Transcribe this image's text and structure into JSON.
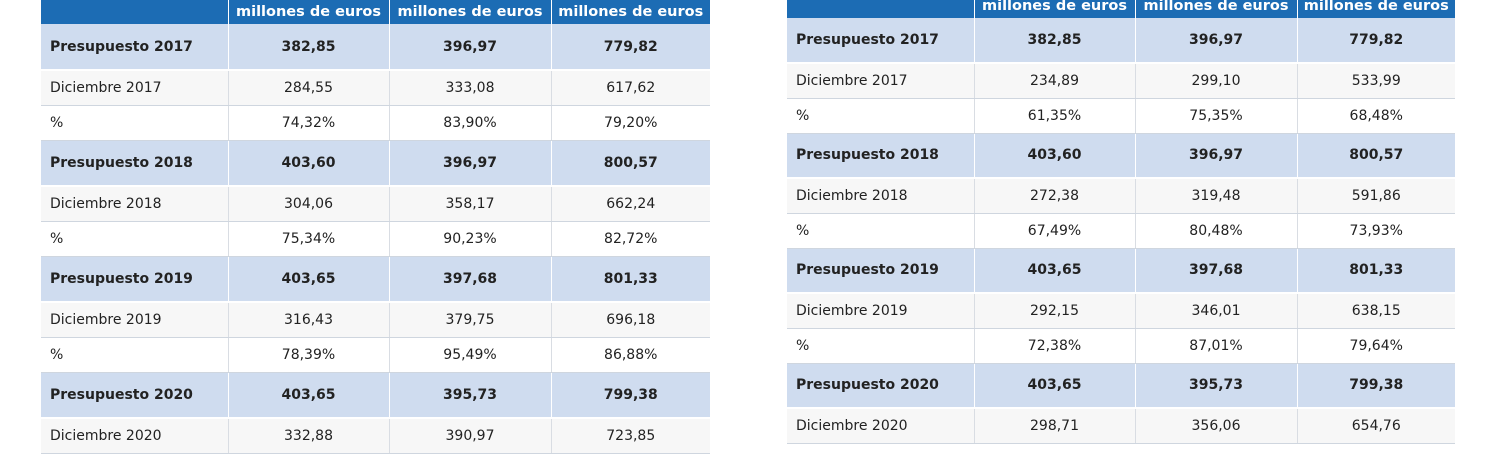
{
  "units": [
    "millones de euros",
    "millones de euros",
    "millones de euros"
  ],
  "left_table": {
    "rows": [
      {
        "kind": "budget",
        "label": "Presupuesto 2017",
        "values": [
          "382,85",
          "396,97",
          "779,82"
        ]
      },
      {
        "kind": "month",
        "label": "Diciembre 2017",
        "values": [
          "284,55",
          "333,08",
          "617,62"
        ]
      },
      {
        "kind": "pct",
        "label": "%",
        "values": [
          "74,32%",
          "83,90%",
          "79,20%"
        ]
      },
      {
        "kind": "budget",
        "label": "Presupuesto 2018",
        "values": [
          "403,60",
          "396,97",
          "800,57"
        ]
      },
      {
        "kind": "month",
        "label": "Diciembre 2018",
        "values": [
          "304,06",
          "358,17",
          "662,24"
        ]
      },
      {
        "kind": "pct",
        "label": "%",
        "values": [
          "75,34%",
          "90,23%",
          "82,72%"
        ]
      },
      {
        "kind": "budget",
        "label": "Presupuesto 2019",
        "values": [
          "403,65",
          "397,68",
          "801,33"
        ]
      },
      {
        "kind": "month",
        "label": "Diciembre 2019",
        "values": [
          "316,43",
          "379,75",
          "696,18"
        ]
      },
      {
        "kind": "pct",
        "label": "%",
        "values": [
          "78,39%",
          "95,49%",
          "86,88%"
        ]
      },
      {
        "kind": "budget",
        "label": "Presupuesto 2020",
        "values": [
          "403,65",
          "395,73",
          "799,38"
        ]
      },
      {
        "kind": "month",
        "label": "Diciembre 2020",
        "values": [
          "332,88",
          "390,97",
          "723,85"
        ]
      }
    ]
  },
  "right_table": {
    "rows": [
      {
        "kind": "budget",
        "label": "Presupuesto 2017",
        "values": [
          "382,85",
          "396,97",
          "779,82"
        ]
      },
      {
        "kind": "month",
        "label": "Diciembre 2017",
        "values": [
          "234,89",
          "299,10",
          "533,99"
        ]
      },
      {
        "kind": "pct",
        "label": "%",
        "values": [
          "61,35%",
          "75,35%",
          "68,48%"
        ]
      },
      {
        "kind": "budget",
        "label": "Presupuesto 2018",
        "values": [
          "403,60",
          "396,97",
          "800,57"
        ]
      },
      {
        "kind": "month",
        "label": "Diciembre 2018",
        "values": [
          "272,38",
          "319,48",
          "591,86"
        ]
      },
      {
        "kind": "pct",
        "label": "%",
        "values": [
          "67,49%",
          "80,48%",
          "73,93%"
        ]
      },
      {
        "kind": "budget",
        "label": "Presupuesto 2019",
        "values": [
          "403,65",
          "397,68",
          "801,33"
        ]
      },
      {
        "kind": "month",
        "label": "Diciembre 2019",
        "values": [
          "292,15",
          "346,01",
          "638,15"
        ]
      },
      {
        "kind": "pct",
        "label": "%",
        "values": [
          "72,38%",
          "87,01%",
          "79,64%"
        ]
      },
      {
        "kind": "budget",
        "label": "Presupuesto 2020",
        "values": [
          "403,65",
          "395,73",
          "799,38"
        ]
      },
      {
        "kind": "month",
        "label": "Diciembre 2020",
        "values": [
          "298,71",
          "356,06",
          "654,76"
        ]
      }
    ]
  },
  "colors": {
    "header_bg": "#1c6cb4",
    "budget_row_bg": "#cfdcef",
    "month_row_bg": "#f7f7f7"
  }
}
